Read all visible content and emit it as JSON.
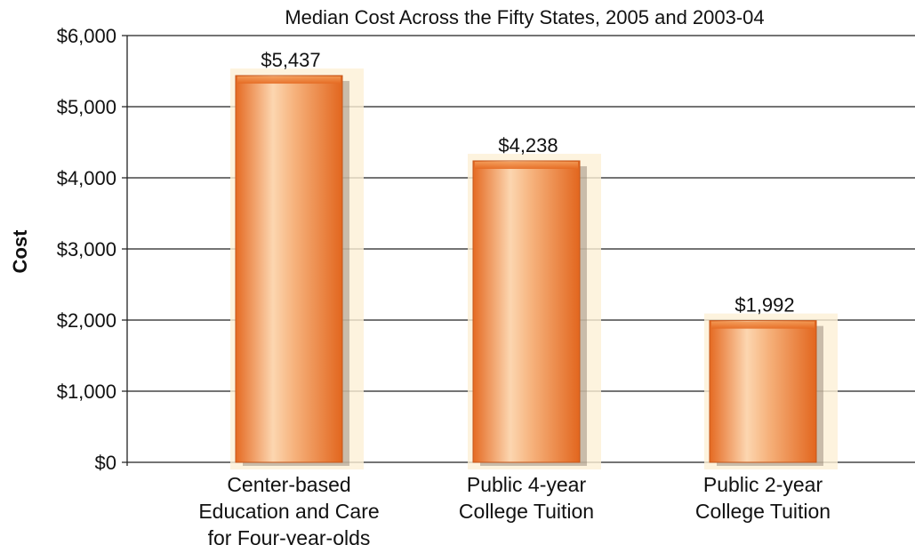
{
  "chart_data": {
    "type": "bar",
    "title": "Median Cost Across the Fifty States, 2005 and 2003-04",
    "ylabel": "Cost",
    "xlabel": "",
    "categories": [
      [
        "Center-based",
        "Education and Care",
        "for Four-year-olds"
      ],
      [
        "Public 4-year",
        "College Tuition"
      ],
      [
        "Public 2-year",
        "College Tuition"
      ]
    ],
    "values": [
      5437,
      4238,
      1992
    ],
    "value_labels": [
      "$5,437",
      "$4,238",
      "$1,992"
    ],
    "ylim": [
      0,
      6000
    ],
    "yticks": [
      0,
      1000,
      2000,
      3000,
      4000,
      5000,
      6000
    ],
    "ytick_labels": [
      "$0",
      "$1,000",
      "$2,000",
      "$3,000",
      "$4,000",
      "$5,000",
      "$6,000"
    ],
    "grid": true,
    "colors": {
      "bar_dark": "#e8732a",
      "bar_light": "#fbd0a8",
      "bar_glow": "#fdf0d6",
      "bar_shadow": "#8a7a6a",
      "grid": "#222222"
    }
  }
}
